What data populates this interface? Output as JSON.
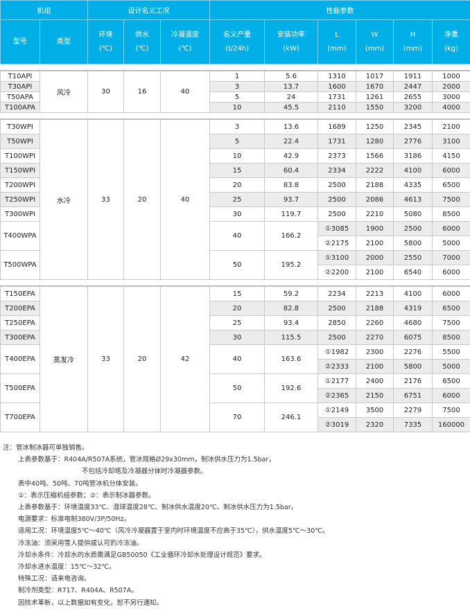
{
  "header": {
    "group_unit": "机组",
    "group_design": "设计名义工况",
    "group_perf": "性能参数",
    "columns": [
      {
        "name": "型号",
        "unit": ""
      },
      {
        "name": "类型",
        "unit": ""
      },
      {
        "name": "环境",
        "unit": "(℃)"
      },
      {
        "name": "供水",
        "unit": "(℃)"
      },
      {
        "name": "冷凝温度",
        "unit": "(℃)"
      },
      {
        "name": "名义产量",
        "unit": "(t/24h)"
      },
      {
        "name": "安装功率",
        "unit": "(kW)"
      },
      {
        "name": "L",
        "unit": "(mm)"
      },
      {
        "name": "W",
        "unit": "(mm)"
      },
      {
        "name": "H",
        "unit": "(mm)"
      },
      {
        "name": "净重",
        "unit": "(kg)"
      }
    ]
  },
  "sections": [
    {
      "type": "风冷",
      "env": "30",
      "supply": "16",
      "cond": "40",
      "models": [
        {
          "model": "T10API",
          "output": "1",
          "power": "5.6",
          "dims": [
            [
              "1310",
              "1017",
              "1911",
              "1000"
            ]
          ]
        },
        {
          "model": "T30API",
          "output": "3",
          "power": "13.7",
          "dims": [
            [
              "1600",
              "1670",
              "2447",
              "2000"
            ]
          ]
        },
        {
          "model": "T50APA",
          "output": "5",
          "power": "24",
          "dims": [
            [
              "1731",
              "1261",
              "2655",
              "3000"
            ]
          ]
        },
        {
          "model": "T100APA",
          "output": "10",
          "power": "45.5",
          "dims": [
            [
              "2110",
              "1550",
              "3200",
              "4000"
            ]
          ]
        }
      ]
    },
    {
      "type": "水冷",
      "env": "33",
      "supply": "20",
      "cond": "40",
      "models": [
        {
          "model": "T30WPI",
          "output": "3",
          "power": "13.6",
          "dims": [
            [
              "1689",
              "1250",
              "2345",
              "2100"
            ]
          ]
        },
        {
          "model": "T50WPI",
          "output": "5",
          "power": "22.4",
          "dims": [
            [
              "1731",
              "1280",
              "2776",
              "3100"
            ]
          ]
        },
        {
          "model": "T100WPI",
          "output": "10",
          "power": "42.9",
          "dims": [
            [
              "2373",
              "1566",
              "3186",
              "4150"
            ]
          ]
        },
        {
          "model": "T150WPI",
          "output": "15",
          "power": "60.4",
          "dims": [
            [
              "2334",
              "2222",
              "4100",
              "6000"
            ]
          ]
        },
        {
          "model": "T200WPI",
          "output": "20",
          "power": "83.8",
          "dims": [
            [
              "2500",
              "2188",
              "4335",
              "6500"
            ]
          ]
        },
        {
          "model": "T250WPI",
          "output": "25",
          "power": "93.7",
          "dims": [
            [
              "2500",
              "2086",
              "4613",
              "7500"
            ]
          ]
        },
        {
          "model": "T300WPI",
          "output": "30",
          "power": "119.7",
          "dims": [
            [
              "2500",
              "2210",
              "5080",
              "8500"
            ]
          ]
        },
        {
          "model": "T400WPA",
          "output": "40",
          "power": "166.2",
          "dims": [
            [
              "①3085",
              "1900",
              "2500",
              "6000"
            ],
            [
              "②2175",
              "2100",
              "5800",
              "5000"
            ]
          ]
        },
        {
          "model": "T500WPA",
          "output": "50",
          "power": "195.2",
          "dims": [
            [
              "①3100",
              "2000",
              "2550",
              "7000"
            ],
            [
              "②2200",
              "2100",
              "6540",
              "6000"
            ]
          ]
        }
      ]
    },
    {
      "type": "蒸发冷",
      "env": "33",
      "supply": "20",
      "cond": "42",
      "models": [
        {
          "model": "T150EPA",
          "output": "15",
          "power": "59.2",
          "dims": [
            [
              "2234",
              "2213",
              "4100",
              "6000"
            ]
          ]
        },
        {
          "model": "T200EPA",
          "output": "20",
          "power": "82.8",
          "dims": [
            [
              "2500",
              "2188",
              "4319",
              "6500"
            ]
          ]
        },
        {
          "model": "T250EPA",
          "output": "25",
          "power": "93.4",
          "dims": [
            [
              "2850",
              "2260",
              "4680",
              "7500"
            ]
          ]
        },
        {
          "model": "T300EPA",
          "output": "30",
          "power": "115.5",
          "dims": [
            [
              "2500",
              "2270",
              "6075",
              "8500"
            ]
          ]
        },
        {
          "model": "T400EPA",
          "output": "40",
          "power": "163.6",
          "dims": [
            [
              "①1982",
              "2300",
              "2276",
              "5500"
            ],
            [
              "②2333",
              "2100",
              "5800",
              "5000"
            ]
          ]
        },
        {
          "model": "T500EPA",
          "output": "50",
          "power": "192.6",
          "dims": [
            [
              "①2177",
              "2400",
              "2176",
              "6500"
            ],
            [
              "②2365",
              "2150",
              "6751",
              "6000"
            ]
          ]
        },
        {
          "model": "T700EPA",
          "output": "70",
          "power": "246.1",
          "dims": [
            [
              "①2149",
              "3500",
              "2279",
              "7500"
            ],
            [
              "②3019",
              "2320",
              "7335",
              "160000"
            ]
          ]
        }
      ]
    }
  ],
  "notes": {
    "label": "注：",
    "lines": [
      "管冰制冰器可单独销售。",
      "上表参数基于：R404A/R507A系统，管冰规格Ø29x30mm，制冰供水压力为1.5bar，",
      "不包括冷却塔及冷凝器分体时冷凝器参数。",
      "表中40吨、50吨、70吨管冰机分体安装。",
      "①：表示压缩机组参数；②：表示制冰器参数。",
      "上表参数基于：环境温度33℃、湿球温度28℃、制冰供水温度20℃、制冰供水压力为1.5bar。",
      "电源要求：标准电制380V/3P/50Hz。",
      "适用工况：环境温度5℃～40℃（风冷冷凝器置于室内时环境温度不应高于35℃），供水温度5℃～30℃。",
      "冷冻油：须采用雪人提供或认可的冷冻油。",
      "冷却水条件：冷却水的水质需满足GB50050《工业循环冷却水处理设计规范》要求。",
      "冷却水进水温度：15℃～32℃。",
      "特殊工况：请来电咨询。",
      "制冷剂类型：R717、R404A、R507A。",
      "因技术革新，以上数据如有变化，恕不另行通知。"
    ]
  },
  "colors": {
    "header": "#00aee8",
    "stripe": "#ececec"
  }
}
